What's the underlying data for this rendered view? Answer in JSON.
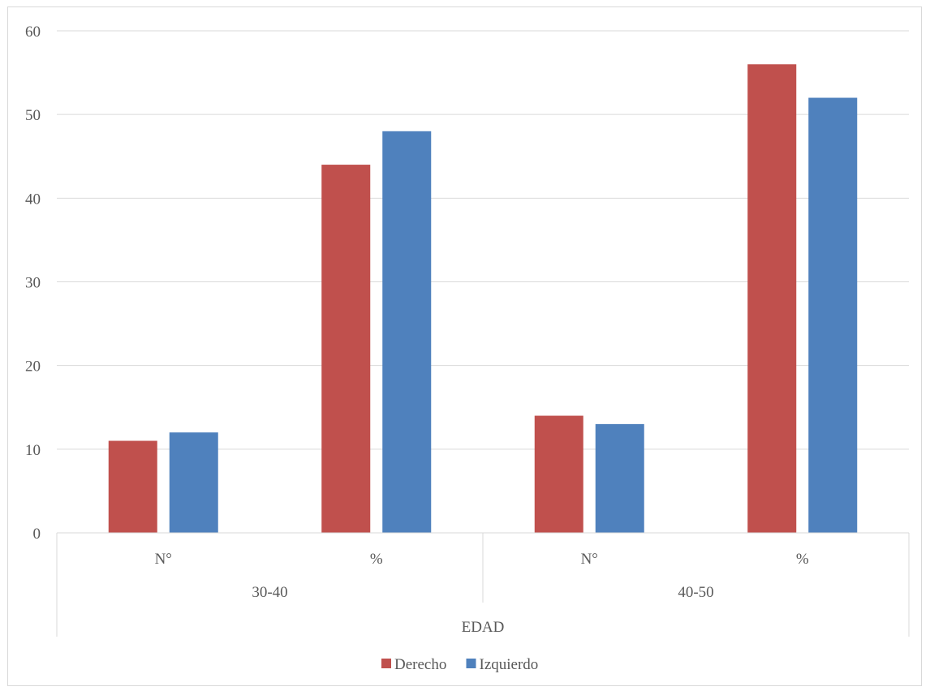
{
  "chart_data": {
    "type": "bar",
    "categories": [
      "N°",
      "%",
      "N°",
      "%"
    ],
    "groups": [
      "30-40",
      "40-50"
    ],
    "group_title": "EDAD",
    "series": [
      {
        "name": "Derecho",
        "values": [
          11,
          44,
          14,
          56
        ],
        "color": "#c0504d"
      },
      {
        "name": "Izquierdo",
        "values": [
          12,
          48,
          13,
          52
        ],
        "color": "#4f81bd"
      }
    ],
    "ylim": [
      0,
      60
    ],
    "yticks": [
      0,
      10,
      20,
      30,
      40,
      50,
      60
    ],
    "grid": true,
    "legend": "bottom"
  }
}
